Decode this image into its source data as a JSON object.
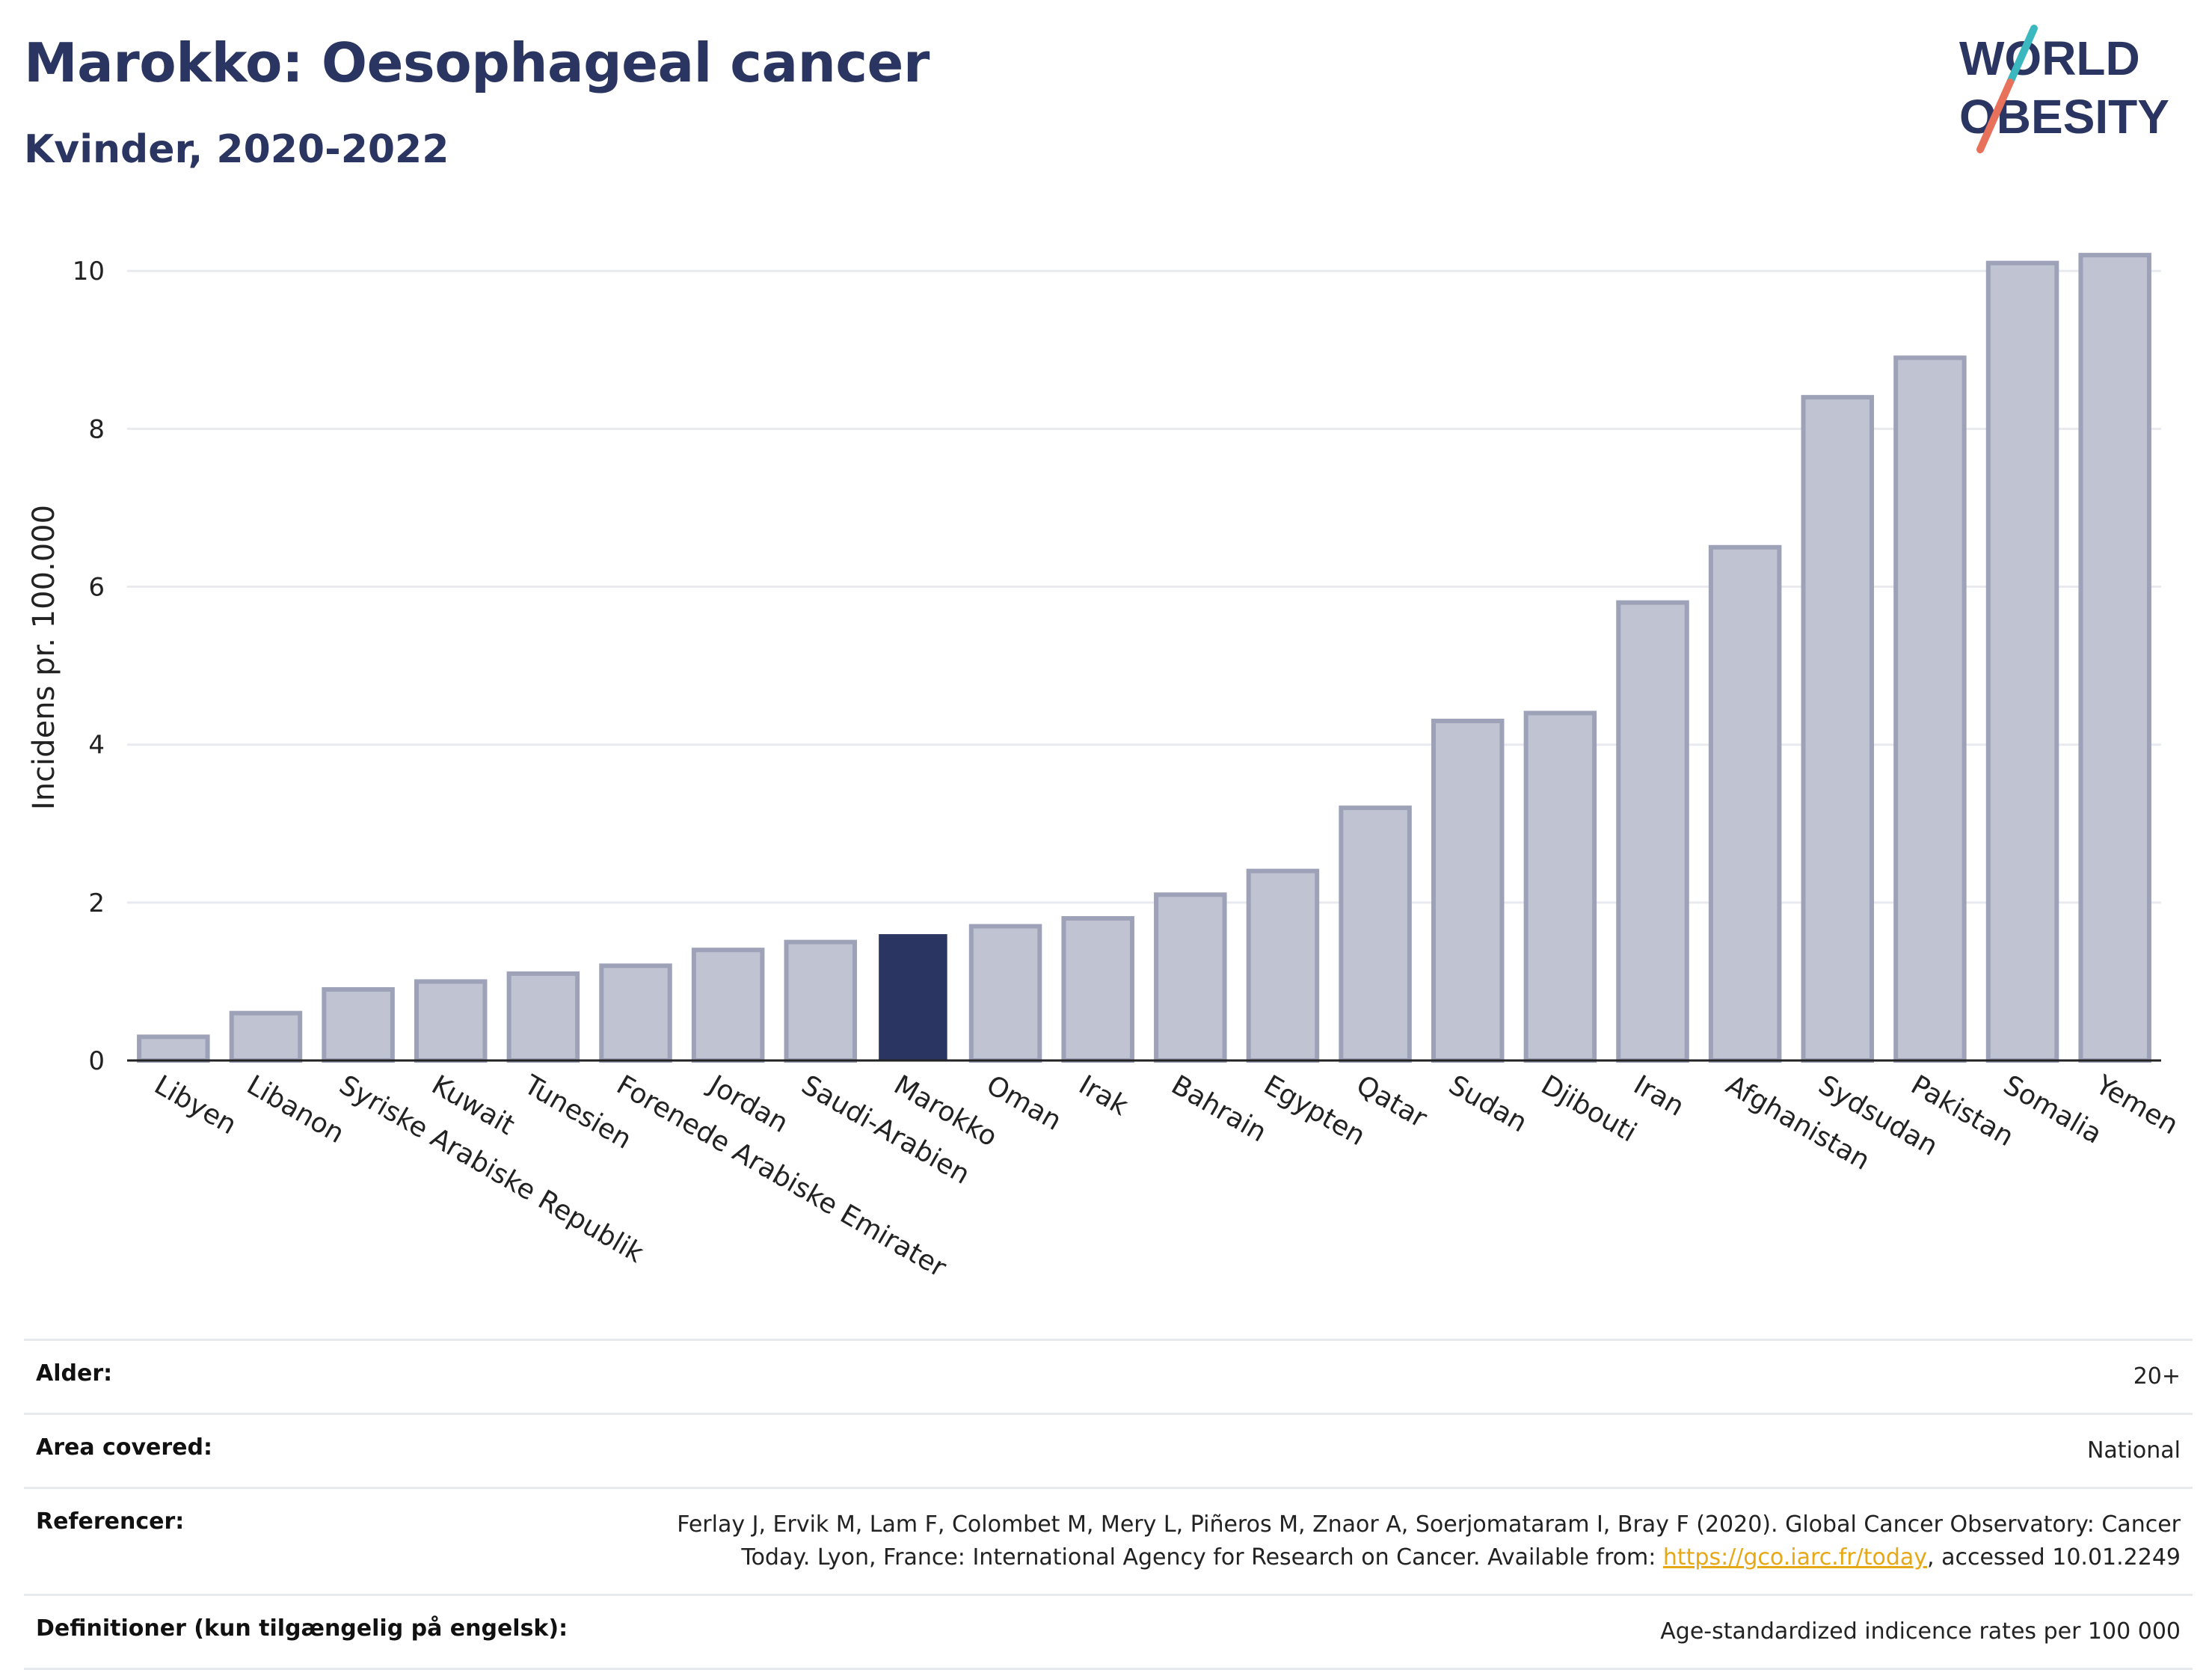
{
  "header": {
    "title": "Marokko: Oesophageal cancer",
    "subtitle": "Kvinder, 2020-2022"
  },
  "logo": {
    "line1": "WORLD",
    "line2": "OBESITY",
    "colors": {
      "text": "#2a3561",
      "slash_teal": "#3ab7bf",
      "slash_coral": "#e8715c"
    }
  },
  "chart_data": {
    "type": "bar",
    "title": "Marokko: Oesophageal cancer",
    "subtitle": "Kvinder, 2020-2022",
    "ylabel": "Incidens pr. 100.000",
    "xlabel": "",
    "ylim": [
      0,
      10.4
    ],
    "yticks": [
      0,
      2,
      4,
      6,
      8,
      10
    ],
    "grid": true,
    "highlight": "Marokko",
    "colors": {
      "bar": "#c0c3d1",
      "bar_border": "#9ea2b8",
      "highlight": "#2a3561",
      "grid": "#e8eaef"
    },
    "categories": [
      "Libyen",
      "Libanon",
      "Syriske Arabiske Republik",
      "Kuwait",
      "Tunesien",
      "Forenede Arabiske Emirater",
      "Jordan",
      "Saudi-Arabien",
      "Marokko",
      "Oman",
      "Irak",
      "Bahrain",
      "Egypten",
      "Qatar",
      "Sudan",
      "Djibouti",
      "Iran",
      "Afghanistan",
      "Sydsudan",
      "Pakistan",
      "Somalia",
      "Yemen"
    ],
    "values": [
      0.3,
      0.6,
      0.9,
      1.0,
      1.1,
      1.2,
      1.4,
      1.5,
      1.6,
      1.7,
      1.8,
      2.1,
      2.4,
      3.2,
      4.3,
      4.4,
      5.8,
      6.5,
      8.4,
      8.9,
      10.1,
      10.2
    ]
  },
  "meta": [
    {
      "key": "Alder:",
      "value": "20+"
    },
    {
      "key": "Area covered:",
      "value": "National"
    },
    {
      "key": "Referencer:",
      "value_pre": "Ferlay J, Ervik M, Lam F, Colombet M, Mery L, Piñeros M, Znaor A, Soerjomataram I, Bray F (2020). Global Cancer Observatory: Cancer Today. Lyon, France: International Agency for Research on Cancer. Available from: ",
      "link": "https://gco.iarc.fr/today",
      "value_post": ", accessed 10.01.2249"
    },
    {
      "key": "Definitioner (kun tilgængelig på engelsk):",
      "value": "Age-standardized indicence rates per 100 000"
    }
  ]
}
